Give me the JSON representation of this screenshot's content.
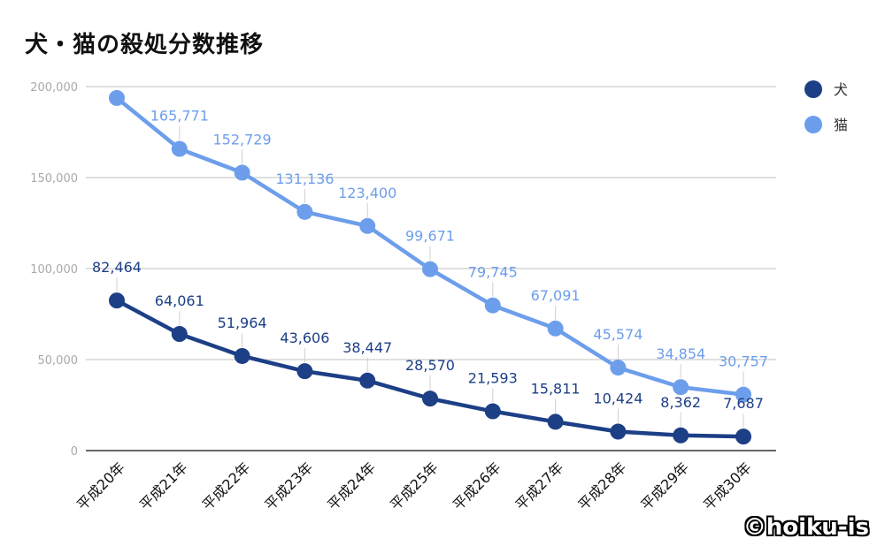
{
  "title": "犬・猫の殺処分数推移",
  "credit": "©hoiku-is",
  "colors": {
    "dog": "#1c3f86",
    "cat": "#6d9eeb",
    "grid": "#cccccc",
    "axis": "#333333",
    "tick": "#a9a9a9"
  },
  "chart_data": {
    "type": "line",
    "title": "犬・猫の殺処分数推移",
    "xlabel": "",
    "ylabel": "",
    "ylim": [
      0,
      200000
    ],
    "yticks": [
      "0",
      "50,000",
      "100,000",
      "150,000",
      "200,000"
    ],
    "categories": [
      "平成20年",
      "平成21年",
      "平成22年",
      "平成23年",
      "平成24年",
      "平成25年",
      "平成26年",
      "平成27年",
      "平成28年",
      "平成29年",
      "平成30年"
    ],
    "series": [
      {
        "name": "犬",
        "color": "#1c3f86",
        "values": [
          82464,
          64061,
          51964,
          43606,
          38447,
          28570,
          21593,
          15811,
          10424,
          8362,
          7687
        ],
        "labels": [
          "82,464",
          "64,061",
          "51,964",
          "43,606",
          "38,447",
          "28,570",
          "21,593",
          "15,811",
          "10,424",
          "8,362",
          "7,687"
        ]
      },
      {
        "name": "猫",
        "color": "#6d9eeb",
        "values": [
          193748,
          165771,
          152729,
          131136,
          123400,
          99671,
          79745,
          67091,
          45574,
          34854,
          30757
        ],
        "labels": [
          "",
          "165,771",
          "152,729",
          "131,136",
          "123,400",
          "99,671",
          "79,745",
          "67,091",
          "45,574",
          "34,854",
          "30,757"
        ]
      }
    ],
    "grid": true,
    "legend": "top-right"
  }
}
